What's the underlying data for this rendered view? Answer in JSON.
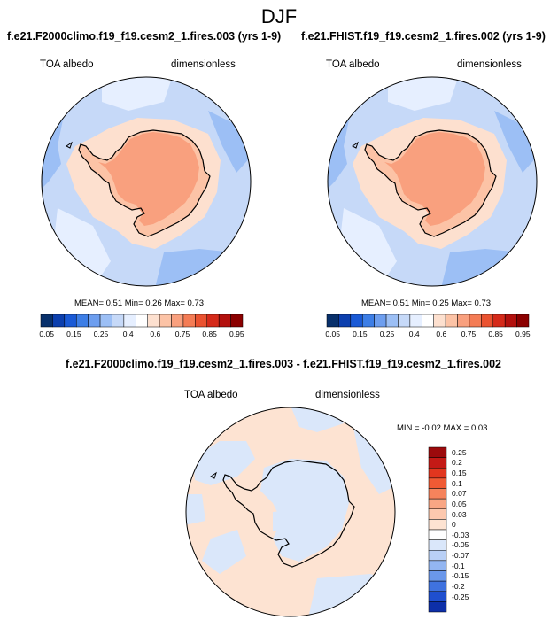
{
  "suptitle": "DJF",
  "panels": [
    {
      "title": "f.e21.F2000climo.f19_f19.cesm2_1.fires.003 (yrs 1-9)",
      "left_label": "TOA albedo",
      "right_label": "dimensionless",
      "stats": "MEAN=   0.51   Min=   0.26   Max=   0.73"
    },
    {
      "title": "f.e21.FHIST.f19_f19.cesm2_1.fires.002 (yrs 1-9)",
      "left_label": "TOA albedo",
      "right_label": "dimensionless",
      "stats": "MEAN=   0.51   Min=   0.25   Max=   0.73"
    }
  ],
  "diff": {
    "title": "f.e21.F2000climo.f19_f19.cesm2_1.fires.003 - f.e21.FHIST.f19_f19.cesm2_1.fires.002",
    "left_label": "TOA albedo",
    "right_label": "dimensionless",
    "stats": "MIN =  -0.02 MAX =   0.03"
  },
  "colorbar_abs": {
    "ticks": [
      "0.05",
      "0.15",
      "0.25",
      "0.4",
      "0.6",
      "0.75",
      "0.85",
      "0.95"
    ],
    "colors": [
      "#08306b",
      "#0c3fae",
      "#1a5ad6",
      "#3d7ee6",
      "#6d9eef",
      "#9cbff5",
      "#c6d9f8",
      "#e6efff",
      "#ffffff",
      "#fde0cf",
      "#fcc3a6",
      "#f9a07e",
      "#f47c55",
      "#ea5230",
      "#d52a1a",
      "#b3100d",
      "#8b0000"
    ]
  },
  "colorbar_diff": {
    "ticks": [
      "0.25",
      "0.2",
      "0.15",
      "0.1",
      "0.07",
      "0.05",
      "0.03",
      "0",
      "-0.03",
      "-0.05",
      "-0.07",
      "-0.1",
      "-0.15",
      "-0.2",
      "-0.25"
    ],
    "colors": [
      "#9c0a0c",
      "#c41a16",
      "#e1361f",
      "#f05a34",
      "#f5835c",
      "#f8a684",
      "#fcc8ae",
      "#fde3d2",
      "#ffffff",
      "#dae7fa",
      "#b9d0f6",
      "#93b6f1",
      "#6a97ea",
      "#3f72df",
      "#1f4fcf",
      "#0d2fa8"
    ]
  },
  "colors": {
    "ocean_abs": "#c6d9f8",
    "ocean_light_abs": "#e6efff",
    "ocean_dark_abs": "#9cbff5",
    "ice_abs_outer": "#fde0cf",
    "ice_abs_mid": "#fcc3a6",
    "ice_abs_core": "#f9a07e",
    "diff_pos": "#fde3d2",
    "diff_neg": "#dae7fa"
  }
}
